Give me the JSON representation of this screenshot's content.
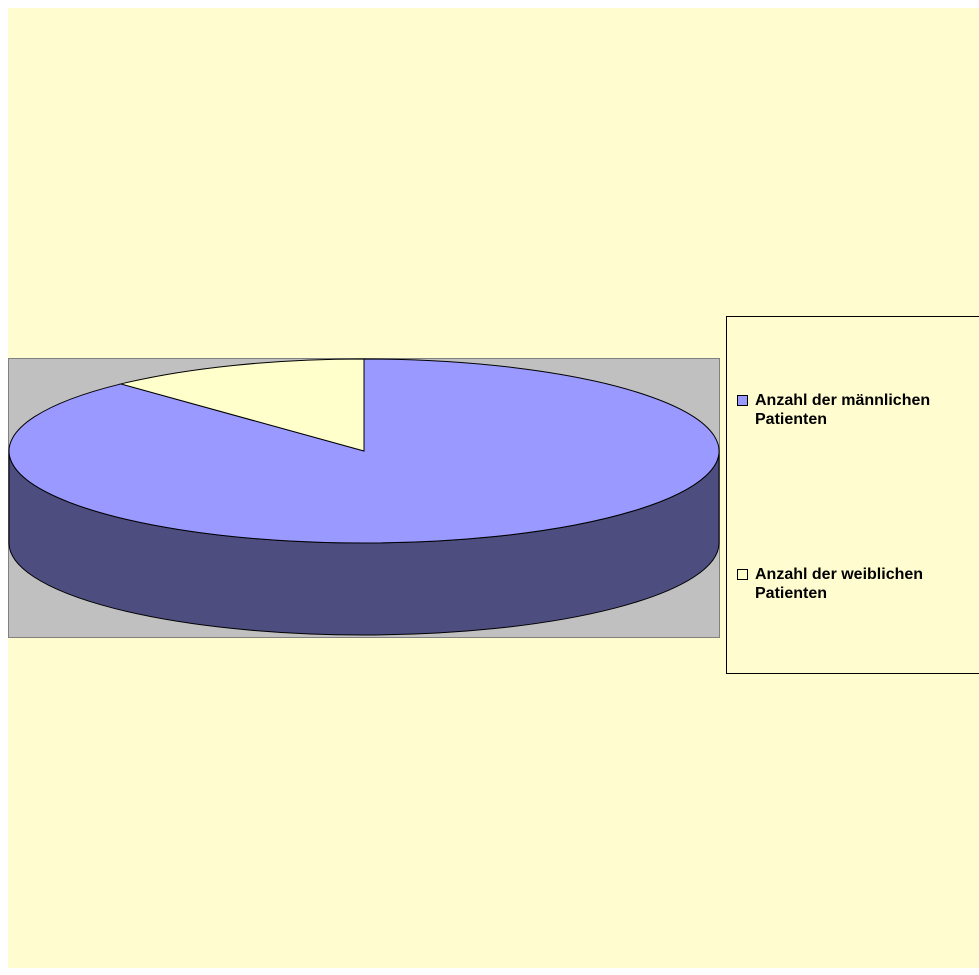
{
  "chart_data": {
    "type": "pie",
    "three_d": true,
    "title": "",
    "series": [
      {
        "slices": [
          {
            "label": "Anzahl der männlichen Patienten",
            "value": 88,
            "color": "#9999ff",
            "side_color": "#4d4d7f"
          },
          {
            "label": "Anzahl der weiblichen Patienten",
            "value": 12,
            "color": "#ffffcc",
            "side_color": "#7f7f66"
          }
        ]
      }
    ],
    "legend_placement": "right",
    "plot_background": "#c0c0c0",
    "chart_background": "#fffdd0"
  },
  "legend": {
    "items": [
      {
        "label": "Anzahl der männlichen Patienten",
        "color": "#9999ff"
      },
      {
        "label": "Anzahl der weiblichen Patienten",
        "color": "#ffffcc"
      }
    ]
  }
}
